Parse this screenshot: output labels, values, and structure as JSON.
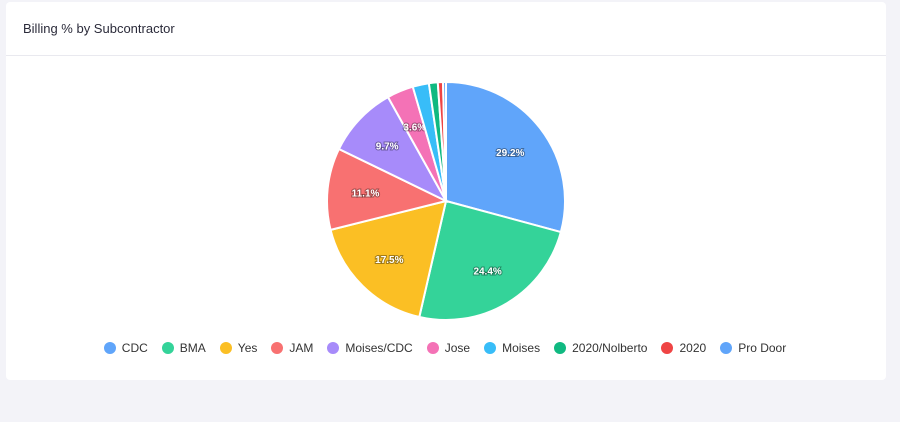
{
  "card": {
    "title": "Billing % by Subcontractor"
  },
  "chart_data": {
    "type": "pie",
    "title": "Billing % by Subcontractor",
    "legend_position": "bottom",
    "categories": [
      "CDC",
      "BMA",
      "Yes",
      "JAM",
      "Moises/CDC",
      "Jose",
      "Moises",
      "2020/Nolberto",
      "2020",
      "Pro Door"
    ],
    "values": [
      29.2,
      24.4,
      17.5,
      11.1,
      9.7,
      3.6,
      2.2,
      1.2,
      0.7,
      0.4
    ],
    "data_labels": [
      "29.2%",
      "24.4%",
      "17.5%",
      "11.1%",
      "9.7%",
      "3.6%",
      "",
      "",
      "",
      ""
    ],
    "colors": [
      "#60a5fa",
      "#34d399",
      "#fbbf24",
      "#f87171",
      "#a78bfa",
      "#f472b6",
      "#38bdf8",
      "#10b981",
      "#ef4444",
      "#60a5fa"
    ]
  }
}
